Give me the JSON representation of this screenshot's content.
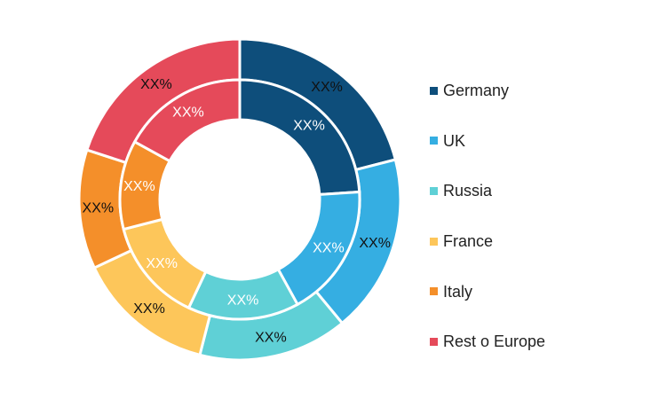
{
  "chart_data": {
    "type": "pie",
    "variant": "nested-donut",
    "categories": [
      "Germany",
      "UK",
      "Russia",
      "France",
      "Italy",
      "Rest o Europe"
    ],
    "colors": [
      "#0e4e7b",
      "#35aee2",
      "#5fd0d6",
      "#fdc65a",
      "#f48f2a",
      "#e54a5a"
    ],
    "series": [
      {
        "ring": "outer",
        "values": [
          21,
          18,
          15,
          14,
          12,
          20
        ],
        "labels": [
          "XX%",
          "XX%",
          "XX%",
          "XX%",
          "XX%",
          "XX%"
        ]
      },
      {
        "ring": "inner",
        "values": [
          24,
          18,
          15,
          14,
          12,
          17
        ],
        "labels": [
          "XX%",
          "XX%",
          "XX%",
          "XX%",
          "XX%",
          "XX%"
        ]
      }
    ],
    "legend_position": "right",
    "title": "",
    "xlabel": "",
    "ylabel": ""
  }
}
